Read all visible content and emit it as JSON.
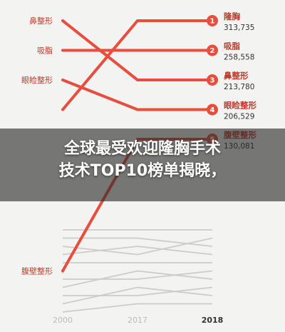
{
  "headline": {
    "line1": "全球最受欢迎隆胸手术",
    "line2": "技术TOP10榜单揭晓，"
  },
  "chart_data": {
    "type": "line",
    "style": "slope-ranking",
    "x": [
      "2000",
      "2017",
      "2018"
    ],
    "y_direction": "rank, 1 at top",
    "left_labels": [
      "鼻整形",
      "吸脂",
      "眼睑整形",
      "腹壁整形"
    ],
    "highlight_color": "#e84d3d",
    "background_color": "#cccccc",
    "highlighted_series": [
      {
        "name": "隆胸",
        "ranks": [
          4,
          1,
          1
        ],
        "rank_2018": "1",
        "value_2018": "313,735"
      },
      {
        "name": "吸脂",
        "ranks": [
          2,
          2,
          2
        ],
        "rank_2018": "2",
        "value_2018": "258,558"
      },
      {
        "name": "鼻整形",
        "ranks": [
          1,
          3,
          3
        ],
        "rank_2018": "3",
        "value_2018": "213,780"
      },
      {
        "name": "眼睑整形",
        "ranks": [
          3,
          4,
          4
        ],
        "rank_2018": "4",
        "value_2018": "206,529"
      },
      {
        "name": "腹壁整形",
        "ranks": [
          11,
          5,
          5
        ],
        "rank_2018": "5",
        "value_2018": "130,081"
      }
    ],
    "right_labels_visible": [
      {
        "rank": "1",
        "name": "隆胸",
        "value": "313,735"
      },
      {
        "rank": "2",
        "name": "吸脂",
        "value": "258,558"
      },
      {
        "rank": "3",
        "name": "鼻整形",
        "value": "213,780"
      },
      {
        "rank": "4",
        "name": "眼睑整形",
        "value": "206,529"
      },
      {
        "rank": "5",
        "name": "腹壁整形",
        "value": "130,081"
      }
    ],
    "background_lines": [
      [
        6,
        6,
        6
      ],
      [
        7,
        7,
        8
      ],
      [
        8,
        9,
        7
      ],
      [
        9,
        8,
        9
      ],
      [
        10,
        10,
        10
      ],
      [
        12,
        12,
        11
      ],
      [
        13,
        11,
        12
      ],
      [
        14,
        14,
        13
      ],
      [
        15,
        13,
        14
      ],
      [
        16,
        15,
        15
      ]
    ]
  }
}
